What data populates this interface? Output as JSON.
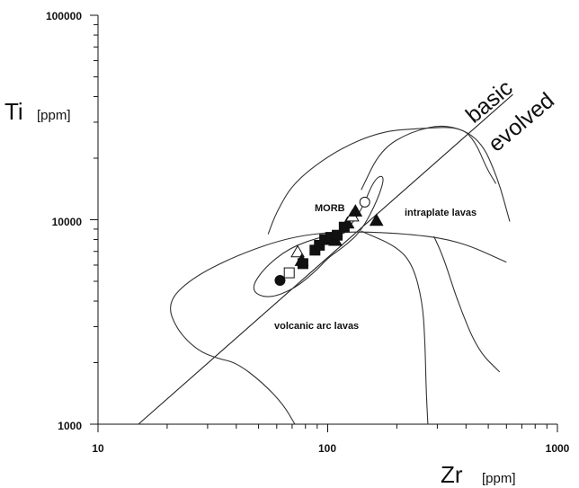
{
  "chart_data": {
    "type": "scatter",
    "x_scale": "log",
    "y_scale": "log",
    "xlim": [
      10,
      1000
    ],
    "ylim": [
      1000,
      100000
    ],
    "xlabel": {
      "main": "Zr",
      "unit": "[ppm]"
    },
    "ylabel": {
      "main": "Ti",
      "unit": "[ppm]"
    },
    "x_tick_labels": [
      "10",
      "100",
      "1000"
    ],
    "y_tick_labels": [
      "1000",
      "10000",
      "100000"
    ],
    "field_labels": {
      "morb": "MORB",
      "intraplate": "intraplate lavas",
      "arc": "volcanic arc lavas"
    },
    "boundary_labels": {
      "basic": "basic",
      "evolved": "evolved"
    },
    "points": [
      {
        "marker": "filled-circle",
        "x": 62,
        "y": 5050
      },
      {
        "marker": "open-square",
        "x": 68,
        "y": 5500
      },
      {
        "marker": "open-triangle",
        "x": 74,
        "y": 6950
      },
      {
        "marker": "filled-triangle",
        "x": 77,
        "y": 6300
      },
      {
        "marker": "filled-square",
        "x": 78,
        "y": 6100
      },
      {
        "marker": "filled-square",
        "x": 88,
        "y": 7100
      },
      {
        "marker": "filled-square",
        "x": 92,
        "y": 7500
      },
      {
        "marker": "filled-square",
        "x": 97,
        "y": 8000
      },
      {
        "marker": "filled-square",
        "x": 103,
        "y": 8200
      },
      {
        "marker": "filled-triangle",
        "x": 108,
        "y": 7900
      },
      {
        "marker": "filled-square",
        "x": 110,
        "y": 8400
      },
      {
        "marker": "filled-square",
        "x": 118,
        "y": 9200
      },
      {
        "marker": "filled-triangle",
        "x": 122,
        "y": 9600
      },
      {
        "marker": "open-triangle",
        "x": 128,
        "y": 10400
      },
      {
        "marker": "filled-triangle",
        "x": 132,
        "y": 11000
      },
      {
        "marker": "open-circle",
        "x": 145,
        "y": 12200
      },
      {
        "marker": "filled-triangle",
        "x": 163,
        "y": 9900
      }
    ],
    "boundary_line": [
      [
        15,
        1000
      ],
      [
        640,
        41000
      ]
    ],
    "fields": {
      "intraplate": [
        [
          140,
          14000
        ],
        [
          170,
          22000
        ],
        [
          230,
          27000
        ],
        [
          330,
          29500
        ],
        [
          460,
          25000
        ],
        [
          550,
          16000
        ],
        [
          620,
          9800
        ]
      ],
      "intraplate_lower": [
        [
          290,
          8300
        ],
        [
          320,
          6500
        ],
        [
          370,
          3900
        ],
        [
          450,
          2300
        ],
        [
          560,
          1800
        ]
      ],
      "morb": [
        [
          118,
          8600
        ],
        [
          140,
          11000
        ],
        [
          160,
          16000
        ],
        [
          178,
          16500
        ],
        [
          165,
          12500
        ],
        [
          140,
          8800
        ],
        [
          118,
          7400
        ],
        [
          100,
          6500
        ],
        [
          90,
          5700
        ],
        [
          72,
          4600
        ],
        [
          55,
          4100
        ],
        [
          46,
          4500
        ],
        [
          52,
          5700
        ],
        [
          68,
          7300
        ],
        [
          95,
          8300
        ],
        [
          118,
          8600
        ]
      ],
      "arc": [
        [
          600,
          6200
        ],
        [
          380,
          7800
        ],
        [
          240,
          8500
        ],
        [
          120,
          8800
        ],
        [
          70,
          8300
        ],
        [
          40,
          6700
        ],
        [
          25,
          5100
        ],
        [
          20,
          3900
        ],
        [
          22,
          2900
        ],
        [
          27,
          2300
        ],
        [
          33,
          2100
        ],
        [
          40,
          2000
        ],
        [
          52,
          1600
        ],
        [
          64,
          1250
        ],
        [
          72,
          1000
        ]
      ],
      "arc_right": [
        [
          140,
          8800
        ],
        [
          200,
          7400
        ],
        [
          235,
          6000
        ],
        [
          258,
          4000
        ],
        [
          265,
          2600
        ],
        [
          268,
          1500
        ],
        [
          273,
          1000
        ]
      ],
      "upper_left": [
        [
          55,
          8500
        ],
        [
          60,
          11000
        ],
        [
          72,
          15500
        ],
        [
          110,
          22000
        ],
        [
          170,
          27000
        ],
        [
          250,
          28000
        ],
        [
          380,
          28500
        ],
        [
          440,
          24000
        ],
        [
          490,
          18000
        ],
        [
          540,
          15000
        ]
      ]
    }
  }
}
